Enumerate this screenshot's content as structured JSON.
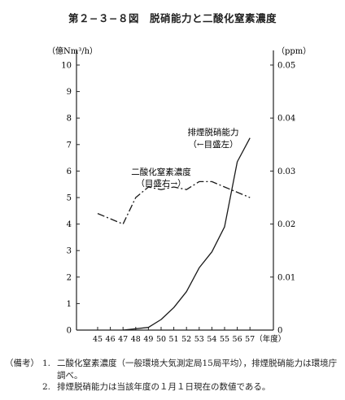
{
  "figure_title": "第２−３−８図　脱硝能力と二酸化窒素濃度",
  "chart_data": {
    "type": "line",
    "title": "第２−３−８図　脱硝能力と二酸化窒素濃度",
    "xlabel": "（年度）",
    "categories": [
      "45",
      "46",
      "47",
      "48",
      "49",
      "50",
      "51",
      "52",
      "53",
      "54",
      "55",
      "56",
      "57"
    ],
    "left_axis": {
      "unit": "（億Nm³/h）",
      "ylim": [
        0,
        10
      ],
      "ticks": [
        "0",
        "1",
        "2",
        "3",
        "4",
        "5",
        "6",
        "7",
        "8",
        "9",
        "10"
      ]
    },
    "right_axis": {
      "unit": "（ppm）",
      "ylim": [
        0,
        0.05
      ],
      "ticks": [
        "0",
        "0.01",
        "0.02",
        "0.03",
        "0.04",
        "0.05"
      ]
    },
    "grid": false,
    "series": [
      {
        "name": "排煙脱硝能力",
        "annotation": [
          "排煙脱硝能力",
          "（←目盛左）"
        ],
        "axis": "left",
        "style": "solid",
        "values": [
          null,
          null,
          0,
          0.05,
          0.1,
          0.4,
          0.85,
          1.45,
          2.35,
          2.95,
          3.9,
          6.35,
          7.25
        ]
      },
      {
        "name": "二酸化窒素濃度",
        "annotation": [
          "二酸化窒素濃度",
          "（目盛右→）"
        ],
        "axis": "right",
        "style": "dash-dot",
        "values": [
          0.022,
          0.021,
          0.02,
          0.025,
          0.027,
          0.0265,
          0.027,
          0.0265,
          0.028,
          0.028,
          0.027,
          0.026,
          0.025
        ]
      }
    ]
  },
  "notes": {
    "tag": "（備考）",
    "items": [
      {
        "num": "1.",
        "text": "二酸化窒素濃度（一般環境大気測定局15局平均），排煙脱硝能力は環境庁調べ。"
      },
      {
        "num": "2.",
        "text": "排煙脱硝能力は当該年度の１月１日現在の数値である。"
      }
    ]
  }
}
